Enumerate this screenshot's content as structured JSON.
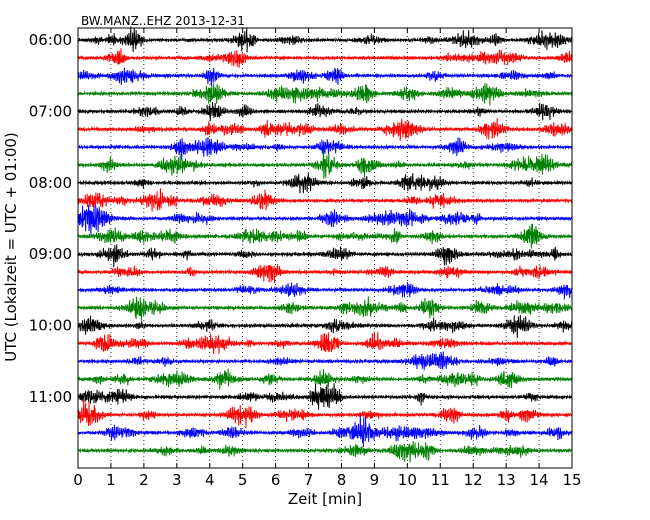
{
  "chart_data": {
    "type": "line",
    "title": "BW.MANZ..EHZ 2013-12-31",
    "xlabel": "Zeit  [min]",
    "ylabel": "UTC (Lokalzeit = UTC + 01:00)",
    "xlim": [
      0,
      15
    ],
    "x_ticks": [
      "0",
      "1",
      "2",
      "3",
      "4",
      "5",
      "6",
      "7",
      "8",
      "9",
      "10",
      "11",
      "12",
      "13",
      "14",
      "15"
    ],
    "y_ticks": [
      "06:00",
      "07:00",
      "08:00",
      "09:00",
      "10:00",
      "11:00"
    ],
    "y_tick_trace_index": [
      0,
      4,
      8,
      12,
      16,
      20
    ],
    "grid": "vertical dotted",
    "trace_start_utc": "06:00",
    "trace_interval_min": 15,
    "trace_count": 24,
    "colors": [
      "#000000",
      "#ff0000",
      "#0000ff",
      "#008000"
    ]
  }
}
